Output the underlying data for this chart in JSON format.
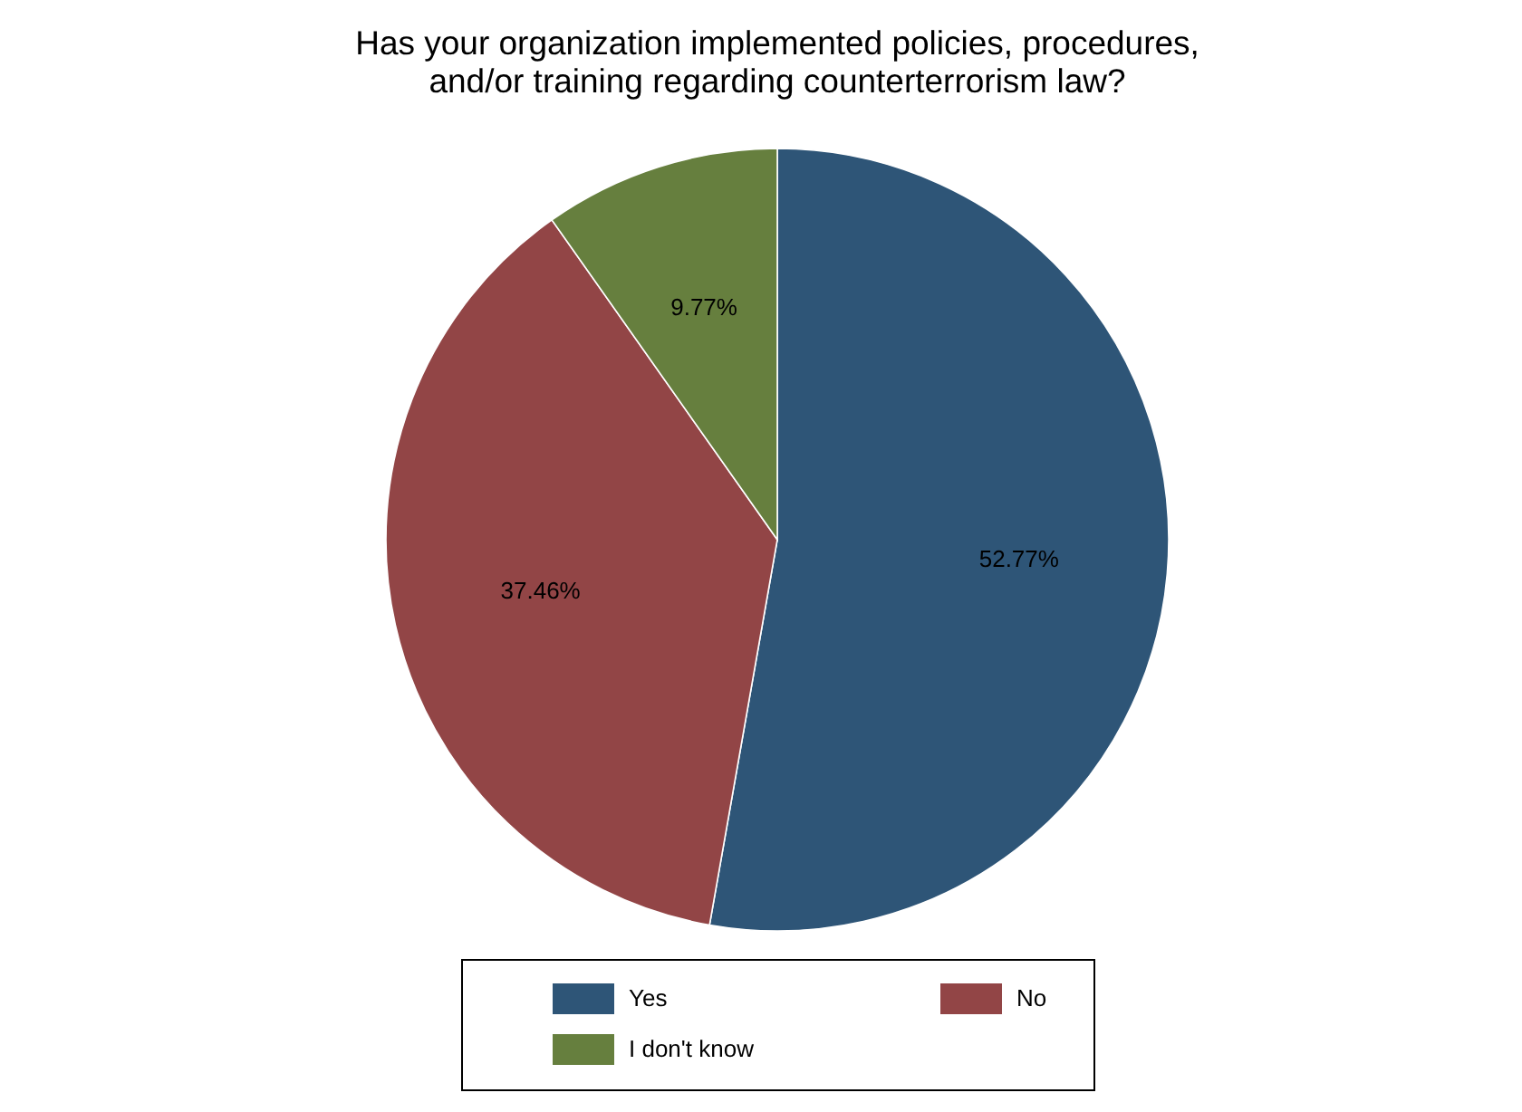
{
  "chart_data": {
    "type": "pie",
    "title": "Has your organization implemented policies, procedures,\nand/or training regarding counterterrorism law?",
    "categories": [
      "Yes",
      "No",
      "I don't know"
    ],
    "values": [
      52.77,
      37.46,
      9.77
    ],
    "colors": [
      "#2e5577",
      "#924546",
      "#667f3e"
    ],
    "value_labels": [
      "52.77%",
      "37.46%",
      "9.77%"
    ],
    "legend": "bottom"
  }
}
